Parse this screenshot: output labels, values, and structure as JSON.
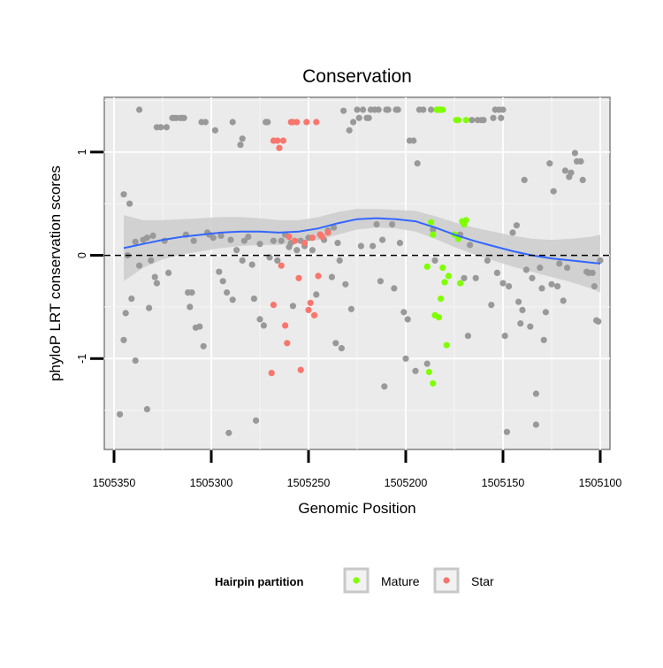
{
  "chart_data": {
    "type": "scatter",
    "title": "Conservation",
    "xlabel": "Genomic Position",
    "ylabel": "phyloP LRT conservation scores",
    "x_reversed": true,
    "xlim": [
      1505355,
      1505095
    ],
    "ylim": [
      -1.88,
      1.53
    ],
    "x_ticks": [
      1505350,
      1505300,
      1505250,
      1505200,
      1505150,
      1505100
    ],
    "x_tick_labels": [
      "1505350",
      "1505300",
      "1505250",
      "1505200",
      "1505150",
      "1505100"
    ],
    "y_ticks": [
      -1,
      0,
      1
    ],
    "y_tick_labels": [
      "-1",
      "0",
      "1"
    ],
    "hline": 0,
    "grid": true,
    "legend": {
      "title": "Hairpin partition",
      "position": "bottom",
      "entries": [
        {
          "label": "Mature",
          "color": "#7fff00"
        },
        {
          "label": "Star",
          "color": "#f8766d"
        }
      ]
    },
    "colors": {
      "background": "#ebebeb",
      "other_points": "#999999",
      "mature": "#7fff00",
      "star": "#f8766d",
      "smooth_line": "#3366ff",
      "ribbon": "#cccccc"
    },
    "series": [
      {
        "name": "Other",
        "color": "#999999",
        "points": [
          [
            1505345,
            0.59
          ],
          [
            1505342,
            0.5
          ],
          [
            1505345,
            -0.82
          ],
          [
            1505344,
            -0.56
          ],
          [
            1505343,
            0.0
          ],
          [
            1505341,
            -0.42
          ],
          [
            1505339,
            -1.02
          ],
          [
            1505339,
            0.13
          ],
          [
            1505337,
            1.41
          ],
          [
            1505337,
            -0.1
          ],
          [
            1505335,
            0.15
          ],
          [
            1505333,
            -1.49
          ],
          [
            1505333,
            0.17
          ],
          [
            1505332,
            -0.51
          ],
          [
            1505331,
            -0.05
          ],
          [
            1505330,
            0.19
          ],
          [
            1505329,
            -0.21
          ],
          [
            1505328,
            -0.27
          ],
          [
            1505328,
            1.24
          ],
          [
            1505326,
            1.24
          ],
          [
            1505324,
            0.14
          ],
          [
            1505323,
            1.24
          ],
          [
            1505322,
            -0.17
          ],
          [
            1505320,
            1.33
          ],
          [
            1505319,
            1.33
          ],
          [
            1505318,
            1.33
          ],
          [
            1505316,
            1.33
          ],
          [
            1505315,
            1.33
          ],
          [
            1505314,
            1.33
          ],
          [
            1505313,
            0.2
          ],
          [
            1505312,
            -0.36
          ],
          [
            1505311,
            -0.5
          ],
          [
            1505310,
            -0.36
          ],
          [
            1505309,
            0.14
          ],
          [
            1505308,
            -0.7
          ],
          [
            1505306,
            -0.69
          ],
          [
            1505305,
            1.29
          ],
          [
            1505304,
            -0.88
          ],
          [
            1505303,
            1.29
          ],
          [
            1505302,
            0.22
          ],
          [
            1505301,
            0.2
          ],
          [
            1505299,
            0.17
          ],
          [
            1505298,
            1.21
          ],
          [
            1505296,
            -0.16
          ],
          [
            1505295,
            0.19
          ],
          [
            1505294,
            -0.25
          ],
          [
            1505292,
            -0.36
          ],
          [
            1505291,
            -1.72
          ],
          [
            1505290,
            0.15
          ],
          [
            1505289,
            1.29
          ],
          [
            1505289,
            -0.43
          ],
          [
            1505287,
            0.05
          ],
          [
            1505285,
            1.07
          ],
          [
            1505284,
            -0.05
          ],
          [
            1505284,
            1.13
          ],
          [
            1505283,
            0.14
          ],
          [
            1505281,
            0.18
          ],
          [
            1505279,
            -0.09
          ],
          [
            1505278,
            -0.42
          ],
          [
            1505277,
            -1.6
          ],
          [
            1505275,
            0.11
          ],
          [
            1505275,
            -0.62
          ],
          [
            1505273,
            -0.68
          ],
          [
            1505272,
            1.29
          ],
          [
            1505271,
            1.29
          ],
          [
            1505270,
            -0.02
          ],
          [
            1505268,
            0.14
          ],
          [
            1505266,
            -0.05
          ],
          [
            1505264,
            0.14
          ],
          [
            1505262,
            0.2
          ],
          [
            1505260,
            0.08
          ],
          [
            1505259,
            0.12
          ],
          [
            1505258,
            -0.49
          ],
          [
            1505256,
            0.05
          ],
          [
            1505254,
            0.14
          ],
          [
            1505252,
            0.09
          ],
          [
            1505250,
            0.17
          ],
          [
            1505248,
            0.05
          ],
          [
            1505246,
            -0.38
          ],
          [
            1505244,
            0.2
          ],
          [
            1505242,
            0.15
          ],
          [
            1505240,
            0.24
          ],
          [
            1505238,
            -0.21
          ],
          [
            1505237,
            0.27
          ],
          [
            1505236,
            -0.85
          ],
          [
            1505235,
            0.12
          ],
          [
            1505234,
            -0.05
          ],
          [
            1505233,
            -0.9
          ],
          [
            1505232,
            1.4
          ],
          [
            1505231,
            -0.28
          ],
          [
            1505229,
            1.21
          ],
          [
            1505228,
            -0.52
          ],
          [
            1505227,
            1.29
          ],
          [
            1505225,
            1.41
          ],
          [
            1505224,
            1.33
          ],
          [
            1505223,
            0.09
          ],
          [
            1505222,
            1.41
          ],
          [
            1505220,
            1.33
          ],
          [
            1505219,
            1.33
          ],
          [
            1505218,
            1.41
          ],
          [
            1505217,
            0.09
          ],
          [
            1505216,
            1.41
          ],
          [
            1505215,
            0.3
          ],
          [
            1505214,
            1.41
          ],
          [
            1505213,
            -0.25
          ],
          [
            1505212,
            0.15
          ],
          [
            1505211,
            -1.27
          ],
          [
            1505210,
            1.41
          ],
          [
            1505209,
            1.41
          ],
          [
            1505207,
            0.3
          ],
          [
            1505206,
            -0.32
          ],
          [
            1505205,
            1.41
          ],
          [
            1505204,
            1.41
          ],
          [
            1505203,
            0.12
          ],
          [
            1505201,
            -0.55
          ],
          [
            1505200,
            -1.0
          ],
          [
            1505199,
            -0.62
          ],
          [
            1505198,
            1.11
          ],
          [
            1505196,
            1.11
          ],
          [
            1505195,
            -1.12
          ],
          [
            1505194,
            0.89
          ],
          [
            1505193,
            1.41
          ],
          [
            1505191,
            1.41
          ],
          [
            1505189,
            -1.05
          ],
          [
            1505187,
            1.41
          ],
          [
            1505186,
            0.25
          ],
          [
            1505185,
            -0.05
          ],
          [
            1505184,
            1.41
          ],
          [
            1505172,
            0.2
          ],
          [
            1505170,
            -0.22
          ],
          [
            1505168,
            -0.78
          ],
          [
            1505167,
            0.1
          ],
          [
            1505166,
            1.31
          ],
          [
            1505164,
            -0.22
          ],
          [
            1505163,
            1.31
          ],
          [
            1505161,
            1.31
          ],
          [
            1505160,
            1.31
          ],
          [
            1505158,
            -0.05
          ],
          [
            1505156,
            -0.48
          ],
          [
            1505155,
            1.33
          ],
          [
            1505154,
            1.41
          ],
          [
            1505153,
            -0.17
          ],
          [
            1505152,
            1.41
          ],
          [
            1505151,
            1.33
          ],
          [
            1505150,
            1.41
          ],
          [
            1505150,
            -0.27
          ],
          [
            1505149,
            -0.78
          ],
          [
            1505148,
            -1.71
          ],
          [
            1505147,
            -0.3
          ],
          [
            1505145,
            0.22
          ],
          [
            1505143,
            0.29
          ],
          [
            1505142,
            -0.45
          ],
          [
            1505141,
            -0.66
          ],
          [
            1505140,
            -0.53
          ],
          [
            1505139,
            0.73
          ],
          [
            1505138,
            -0.14
          ],
          [
            1505136,
            -0.69
          ],
          [
            1505135,
            -0.22
          ],
          [
            1505133,
            -1.34
          ],
          [
            1505133,
            -1.64
          ],
          [
            1505131,
            -0.12
          ],
          [
            1505130,
            -0.32
          ],
          [
            1505129,
            -0.82
          ],
          [
            1505128,
            -0.55
          ],
          [
            1505126,
            0.89
          ],
          [
            1505125,
            -0.28
          ],
          [
            1505124,
            0.62
          ],
          [
            1505122,
            -0.3
          ],
          [
            1505121,
            -0.08
          ],
          [
            1505119,
            -0.44
          ],
          [
            1505118,
            0.82
          ],
          [
            1505117,
            -0.12
          ],
          [
            1505116,
            0.76
          ],
          [
            1505115,
            0.8
          ],
          [
            1505113,
            0.99
          ],
          [
            1505112,
            0.91
          ],
          [
            1505110,
            0.91
          ],
          [
            1505109,
            0.73
          ],
          [
            1505107,
            -0.16
          ],
          [
            1505106,
            -0.17
          ],
          [
            1505104,
            -0.17
          ],
          [
            1505103,
            -0.3
          ],
          [
            1505102,
            -0.63
          ],
          [
            1505101,
            -0.64
          ],
          [
            1505100,
            -0.05
          ],
          [
            1505347,
            -1.54
          ]
        ]
      },
      {
        "name": "Mature",
        "color": "#7fff00",
        "points": [
          [
            1505188,
            -1.13
          ],
          [
            1505189,
            -0.11
          ],
          [
            1505187,
            0.32
          ],
          [
            1505186,
            0.2
          ],
          [
            1505186,
            -1.24
          ],
          [
            1505184,
            1.41
          ],
          [
            1505183,
            1.41
          ],
          [
            1505182,
            1.41
          ],
          [
            1505181,
            1.41
          ],
          [
            1505185,
            -0.58
          ],
          [
            1505183,
            -0.6
          ],
          [
            1505182,
            -0.42
          ],
          [
            1505181,
            -0.12
          ],
          [
            1505180,
            -0.26
          ],
          [
            1505179,
            -0.87
          ],
          [
            1505178,
            -0.2
          ],
          [
            1505175,
            0.2
          ],
          [
            1505174,
            1.31
          ],
          [
            1505173,
            1.31
          ],
          [
            1505173,
            0.16
          ],
          [
            1505172,
            -0.27
          ],
          [
            1505171,
            0.33
          ],
          [
            1505170,
            0.3
          ],
          [
            1505169,
            1.31
          ],
          [
            1505169,
            0.34
          ]
        ]
      },
      {
        "name": "Star",
        "color": "#f8766d",
        "points": [
          [
            1505268,
            1.11
          ],
          [
            1505266,
            1.11
          ],
          [
            1505265,
            1.04
          ],
          [
            1505263,
            1.11
          ],
          [
            1505269,
            -1.14
          ],
          [
            1505268,
            -0.48
          ],
          [
            1505264,
            -0.1
          ],
          [
            1505262,
            -0.68
          ],
          [
            1505261,
            -0.85
          ],
          [
            1505260,
            0.18
          ],
          [
            1505259,
            1.29
          ],
          [
            1505258,
            1.29
          ],
          [
            1505257,
            0.14
          ],
          [
            1505256,
            1.29
          ],
          [
            1505255,
            -0.22
          ],
          [
            1505254,
            -1.11
          ],
          [
            1505252,
            0.12
          ],
          [
            1505251,
            1.29
          ],
          [
            1505250,
            -0.53
          ],
          [
            1505249,
            -0.46
          ],
          [
            1505248,
            0.17
          ],
          [
            1505247,
            -0.58
          ],
          [
            1505246,
            1.29
          ],
          [
            1505245,
            -0.2
          ],
          [
            1505244,
            0.2
          ],
          [
            1505243,
            0.18
          ],
          [
            1505240,
            0.22
          ]
        ]
      }
    ],
    "smooth": {
      "x": [
        1505345,
        1505335,
        1505325,
        1505315,
        1505305,
        1505295,
        1505285,
        1505275,
        1505265,
        1505255,
        1505245,
        1505235,
        1505225,
        1505215,
        1505205,
        1505195,
        1505185,
        1505175,
        1505165,
        1505155,
        1505145,
        1505135,
        1505125,
        1505115,
        1505105,
        1505100
      ],
      "y": [
        0.07,
        0.11,
        0.15,
        0.18,
        0.2,
        0.22,
        0.23,
        0.23,
        0.22,
        0.23,
        0.26,
        0.31,
        0.35,
        0.36,
        0.35,
        0.33,
        0.27,
        0.2,
        0.14,
        0.09,
        0.04,
        0.0,
        -0.03,
        -0.05,
        -0.07,
        -0.08
      ],
      "lower": [
        -0.25,
        -0.12,
        -0.04,
        0.01,
        0.04,
        0.07,
        0.09,
        0.1,
        0.1,
        0.12,
        0.15,
        0.2,
        0.25,
        0.27,
        0.26,
        0.23,
        0.16,
        0.08,
        0.01,
        -0.05,
        -0.11,
        -0.16,
        -0.21,
        -0.26,
        -0.32,
        -0.36
      ],
      "upper": [
        0.39,
        0.34,
        0.34,
        0.35,
        0.36,
        0.37,
        0.37,
        0.36,
        0.34,
        0.34,
        0.37,
        0.42,
        0.45,
        0.45,
        0.44,
        0.43,
        0.38,
        0.32,
        0.27,
        0.23,
        0.19,
        0.16,
        0.15,
        0.16,
        0.18,
        0.2
      ]
    }
  }
}
